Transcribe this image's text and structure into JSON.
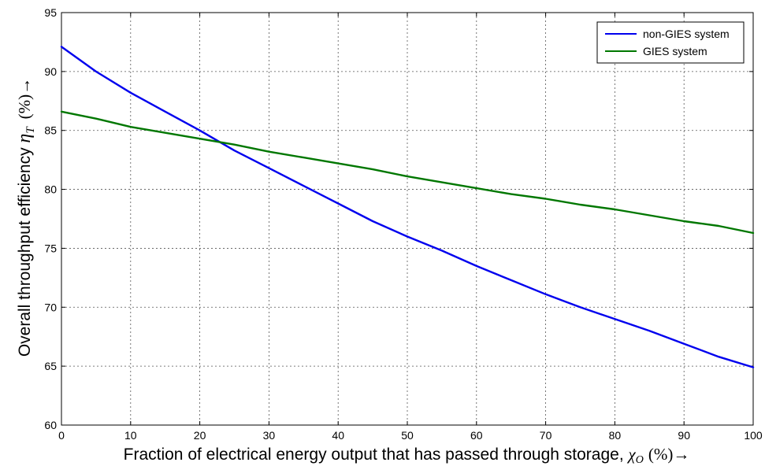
{
  "chart_data": {
    "type": "line",
    "title": "",
    "xlabel": "Fraction of electrical energy output that has passed through storage,",
    "xlabel_symbol": "χ",
    "xlabel_subscript": "O",
    "xlabel_unit": "(%)→",
    "ylabel": "Overall throughput efficiency",
    "ylabel_symbol": "η",
    "ylabel_subscript": "T",
    "ylabel_unit": "(%)→",
    "xlim": [
      0,
      100
    ],
    "ylim": [
      60,
      95
    ],
    "xticks": [
      0,
      10,
      20,
      30,
      40,
      50,
      60,
      70,
      80,
      90,
      100
    ],
    "yticks": [
      60,
      65,
      70,
      75,
      80,
      85,
      90,
      95
    ],
    "grid": true,
    "legend_position": "top-right",
    "series": [
      {
        "name": "non-GIES system",
        "color": "#0000ee",
        "x": [
          0,
          5,
          10,
          15,
          20,
          25,
          30,
          35,
          40,
          45,
          50,
          55,
          60,
          65,
          70,
          75,
          80,
          85,
          90,
          95,
          100
        ],
        "y": [
          92.1,
          90.0,
          88.2,
          86.6,
          85.0,
          83.3,
          81.8,
          80.3,
          78.8,
          77.3,
          76.0,
          74.8,
          73.5,
          72.3,
          71.1,
          70.0,
          69.0,
          68.0,
          66.9,
          65.8,
          64.9
        ]
      },
      {
        "name": "GIES system",
        "color": "#007700",
        "x": [
          0,
          5,
          10,
          15,
          20,
          25,
          30,
          35,
          40,
          45,
          50,
          55,
          60,
          65,
          70,
          75,
          80,
          85,
          90,
          95,
          100
        ],
        "y": [
          86.6,
          86.0,
          85.3,
          84.8,
          84.3,
          83.8,
          83.2,
          82.7,
          82.2,
          81.7,
          81.1,
          80.6,
          80.1,
          79.6,
          79.2,
          78.7,
          78.3,
          77.8,
          77.3,
          76.9,
          76.3
        ]
      }
    ]
  }
}
